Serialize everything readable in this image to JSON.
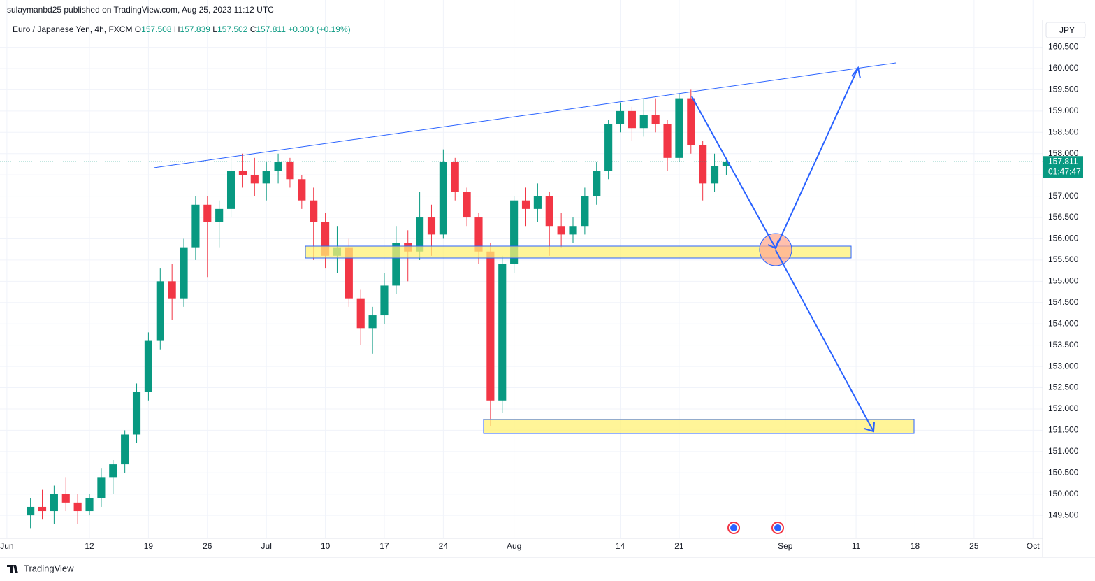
{
  "header": {
    "published": "sulaymanbd25 published on TradingView.com, Aug 25, 2023 11:12 UTC",
    "legend": {
      "symbol": "Euro / Japanese Yen, 4h, FXCM",
      "o_label": "O",
      "o": "157.508",
      "h_label": "H",
      "h": "157.839",
      "l_label": "L",
      "l": "157.502",
      "c_label": "C",
      "c": "157.811",
      "change": "+0.303 (+0.19%)"
    },
    "currency": "JPY",
    "price_label": "157.811",
    "countdown": "01:47:47"
  },
  "footer": {
    "brand": "TradingView"
  },
  "chart_data": {
    "type": "candlestick",
    "x": [
      "2023-06-05",
      "2023-06-06",
      "2023-06-07",
      "2023-06-08",
      "2023-06-09",
      "2023-06-12",
      "2023-06-13",
      "2023-06-14",
      "2023-06-15",
      "2023-06-16",
      "2023-06-19",
      "2023-06-20",
      "2023-06-21",
      "2023-06-22",
      "2023-06-23",
      "2023-06-26",
      "2023-06-27",
      "2023-06-28",
      "2023-06-29",
      "2023-06-30",
      "2023-07-03",
      "2023-07-04",
      "2023-07-05",
      "2023-07-06",
      "2023-07-07",
      "2023-07-10",
      "2023-07-11",
      "2023-07-12",
      "2023-07-13",
      "2023-07-14",
      "2023-07-17",
      "2023-07-18",
      "2023-07-19",
      "2023-07-20",
      "2023-07-21",
      "2023-07-24",
      "2023-07-25",
      "2023-07-26",
      "2023-07-27",
      "2023-07-28",
      "2023-07-31",
      "2023-08-01",
      "2023-08-02",
      "2023-08-03",
      "2023-08-04",
      "2023-08-07",
      "2023-08-08",
      "2023-08-09",
      "2023-08-10",
      "2023-08-11",
      "2023-08-14",
      "2023-08-15",
      "2023-08-16",
      "2023-08-17",
      "2023-08-18",
      "2023-08-21",
      "2023-08-22",
      "2023-08-23",
      "2023-08-24",
      "2023-08-25"
    ],
    "open": [
      149.5,
      149.7,
      149.6,
      150.0,
      149.8,
      149.6,
      149.9,
      150.4,
      150.7,
      151.4,
      152.4,
      153.6,
      155.0,
      154.6,
      155.8,
      156.8,
      156.4,
      156.7,
      157.6,
      157.5,
      157.3,
      157.6,
      157.8,
      157.4,
      156.9,
      156.4,
      155.6,
      155.8,
      154.6,
      153.9,
      154.2,
      154.9,
      155.9,
      155.7,
      156.5,
      156.1,
      157.8,
      157.1,
      156.5,
      155.7,
      152.2,
      155.4,
      156.9,
      156.7,
      157.0,
      156.3,
      156.1,
      156.3,
      157.0,
      157.6,
      158.7,
      159.0,
      158.6,
      158.9,
      158.7,
      157.9,
      159.3,
      158.2,
      157.3,
      157.7
    ],
    "high": [
      149.9,
      150.1,
      150.2,
      150.4,
      150.0,
      150.0,
      150.6,
      150.8,
      151.5,
      152.6,
      153.8,
      155.3,
      155.4,
      156.0,
      157.0,
      157.0,
      156.9,
      157.9,
      158.0,
      157.9,
      157.8,
      158.0,
      157.9,
      157.5,
      157.2,
      156.6,
      156.3,
      156.0,
      154.8,
      154.4,
      155.2,
      156.3,
      156.2,
      157.1,
      156.8,
      158.1,
      157.9,
      157.2,
      156.6,
      155.9,
      155.6,
      157.0,
      157.2,
      157.3,
      157.1,
      156.6,
      156.5,
      157.2,
      157.8,
      158.8,
      159.2,
      159.1,
      159.3,
      159.3,
      158.8,
      159.4,
      159.5,
      158.3,
      158.0,
      157.9
    ],
    "low": [
      149.2,
      149.4,
      149.3,
      149.6,
      149.3,
      149.5,
      149.7,
      150.0,
      150.5,
      151.2,
      152.2,
      153.4,
      154.1,
      154.4,
      155.5,
      155.1,
      155.8,
      156.5,
      157.2,
      157.0,
      156.9,
      157.3,
      157.2,
      156.7,
      155.5,
      155.3,
      155.2,
      154.4,
      153.5,
      153.3,
      154.0,
      154.7,
      155.0,
      155.5,
      155.6,
      156.0,
      156.9,
      156.3,
      155.4,
      151.6,
      151.9,
      155.2,
      156.3,
      156.4,
      155.6,
      155.8,
      155.9,
      156.1,
      156.8,
      157.4,
      158.5,
      158.3,
      158.4,
      158.5,
      157.6,
      157.8,
      158.0,
      156.9,
      157.1,
      157.5
    ],
    "close": [
      149.7,
      149.6,
      150.0,
      149.8,
      149.6,
      149.9,
      150.4,
      150.7,
      151.4,
      152.4,
      153.6,
      155.0,
      154.6,
      155.8,
      156.8,
      156.4,
      156.7,
      157.6,
      157.5,
      157.3,
      157.6,
      157.8,
      157.4,
      156.9,
      156.4,
      155.6,
      155.8,
      154.6,
      153.9,
      154.2,
      154.9,
      155.9,
      155.7,
      156.5,
      156.1,
      157.8,
      157.1,
      156.5,
      155.7,
      152.2,
      155.4,
      156.9,
      156.7,
      157.0,
      156.3,
      156.1,
      156.3,
      157.0,
      157.6,
      158.7,
      159.0,
      158.6,
      158.9,
      158.7,
      157.9,
      159.3,
      158.2,
      157.3,
      157.7,
      157.811
    ],
    "up_color": "#089981",
    "down_color": "#f23645",
    "xlim": [
      "2023-05-31",
      "2023-10-04"
    ],
    "xticks": [
      {
        "value": "2023-06-01",
        "label": "Jun"
      },
      {
        "value": "2023-06-12",
        "label": "12"
      },
      {
        "value": "2023-06-19",
        "label": "19"
      },
      {
        "value": "2023-06-26",
        "label": "26"
      },
      {
        "value": "2023-07-03",
        "label": "Jul"
      },
      {
        "value": "2023-07-10",
        "label": "10"
      },
      {
        "value": "2023-07-17",
        "label": "17"
      },
      {
        "value": "2023-07-24",
        "label": "24"
      },
      {
        "value": "2023-08-01",
        "label": "Aug"
      },
      {
        "value": "2023-08-14",
        "label": "14"
      },
      {
        "value": "2023-08-21",
        "label": "21"
      },
      {
        "value": "2023-09-01",
        "label": "Sep"
      },
      {
        "value": "2023-09-11",
        "label": "11"
      },
      {
        "value": "2023-09-18",
        "label": "18"
      },
      {
        "value": "2023-09-25",
        "label": "25"
      },
      {
        "value": "2023-10-02",
        "label": "Oct"
      }
    ],
    "ylim": [
      148.96,
      161.61
    ],
    "yticks": [
      {
        "value": 149.5,
        "label": "149.500"
      },
      {
        "value": 150,
        "label": "150.000"
      },
      {
        "value": 150.5,
        "label": "150.500"
      },
      {
        "value": 151,
        "label": "151.000"
      },
      {
        "value": 151.5,
        "label": "151.500"
      },
      {
        "value": 152,
        "label": "152.000"
      },
      {
        "value": 152.5,
        "label": "152.500"
      },
      {
        "value": 153,
        "label": "153.000"
      },
      {
        "value": 153.5,
        "label": "153.500"
      },
      {
        "value": 154,
        "label": "154.000"
      },
      {
        "value": 154.5,
        "label": "154.500"
      },
      {
        "value": 155,
        "label": "155.000"
      },
      {
        "value": 155.5,
        "label": "155.500"
      },
      {
        "value": 156,
        "label": "156.000"
      },
      {
        "value": 156.5,
        "label": "156.500"
      },
      {
        "value": 157,
        "label": "157.000"
      },
      {
        "value": 157.5,
        "label": "157.500"
      },
      {
        "value": 158,
        "label": "158.000"
      },
      {
        "value": 158.5,
        "label": "158.500"
      },
      {
        "value": 159,
        "label": "159.000"
      },
      {
        "value": 159.5,
        "label": "159.500"
      },
      {
        "value": 160,
        "label": "160.000"
      },
      {
        "value": 160.5,
        "label": "160.500"
      }
    ],
    "grid": true
  }
}
